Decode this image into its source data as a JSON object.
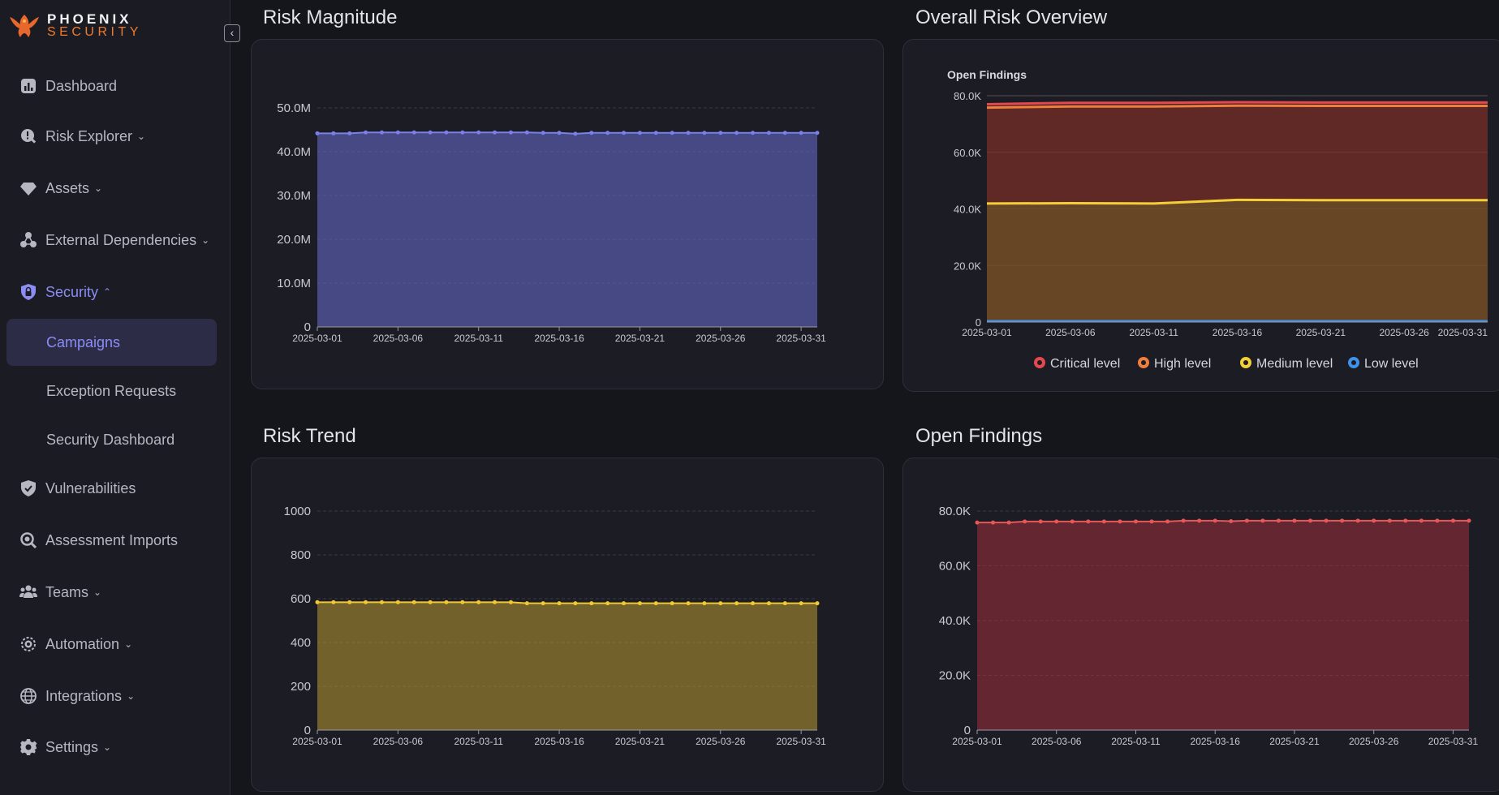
{
  "brand": {
    "line1": "PHOENIX",
    "line2": "SECURITY"
  },
  "sidebar": {
    "collapse_icon": "chevron-left-icon",
    "items": [
      {
        "label": "Dashboard",
        "icon": "chart-icon",
        "chevron": ""
      },
      {
        "label": "Risk Explorer",
        "icon": "risk-search-icon",
        "chevron": "⌄"
      },
      {
        "label": "Assets",
        "icon": "diamond-icon",
        "chevron": "⌄"
      },
      {
        "label": "External Dependencies",
        "icon": "network-icon",
        "chevron": "⌄"
      },
      {
        "label": "Security",
        "icon": "shield-lock-icon",
        "chevron": "⌃"
      },
      {
        "label": "Vulnerabilities",
        "icon": "shield-check-icon",
        "chevron": ""
      },
      {
        "label": "Assessment Imports",
        "icon": "magnifier-icon",
        "chevron": ""
      },
      {
        "label": "Teams",
        "icon": "users-icon",
        "chevron": "⌄"
      },
      {
        "label": "Automation",
        "icon": "gear-cog-icon",
        "chevron": "⌄"
      },
      {
        "label": "Integrations",
        "icon": "globe-icon",
        "chevron": "⌄"
      },
      {
        "label": "Settings",
        "icon": "gear-icon",
        "chevron": "⌄"
      }
    ],
    "security_sub": [
      {
        "label": "Campaigns",
        "selected": true
      },
      {
        "label": "Exception Requests",
        "selected": false
      },
      {
        "label": "Security Dashboard",
        "selected": false
      }
    ]
  },
  "panels": {
    "risk_magnitude": {
      "title": "Risk Magnitude"
    },
    "overall_risk": {
      "title": "Overall Risk Overview"
    },
    "risk_trend": {
      "title": "Risk Trend"
    },
    "open_findings": {
      "title": "Open Findings"
    }
  },
  "colors": {
    "magnitude": "#7b80e8",
    "trend": "#f2c832",
    "findings": "#e65757",
    "critical": "#e5484d",
    "high": "#f07e3c",
    "medium": "#f5cf38",
    "low": "#3e93e8"
  },
  "chart_data": [
    {
      "id": "risk_magnitude",
      "type": "area",
      "title": "",
      "x": [
        "2025-03-01",
        "2025-03-02",
        "2025-03-03",
        "2025-03-04",
        "2025-03-05",
        "2025-03-06",
        "2025-03-07",
        "2025-03-08",
        "2025-03-09",
        "2025-03-10",
        "2025-03-11",
        "2025-03-12",
        "2025-03-13",
        "2025-03-14",
        "2025-03-15",
        "2025-03-16",
        "2025-03-17",
        "2025-03-18",
        "2025-03-19",
        "2025-03-20",
        "2025-03-21",
        "2025-03-22",
        "2025-03-23",
        "2025-03-24",
        "2025-03-25",
        "2025-03-26",
        "2025-03-27",
        "2025-03-28",
        "2025-03-29",
        "2025-03-30",
        "2025-03-31",
        "2025-04-01"
      ],
      "x_ticks": [
        "2025-03-01",
        "2025-03-06",
        "2025-03-11",
        "2025-03-16",
        "2025-03-21",
        "2025-03-26",
        "2025-03-31"
      ],
      "values": [
        44.2,
        44.2,
        44.2,
        44.4,
        44.4,
        44.4,
        44.4,
        44.4,
        44.4,
        44.4,
        44.4,
        44.4,
        44.4,
        44.4,
        44.3,
        44.3,
        44.1,
        44.3,
        44.3,
        44.3,
        44.3,
        44.3,
        44.3,
        44.3,
        44.3,
        44.3,
        44.3,
        44.3,
        44.3,
        44.3,
        44.3,
        44.3
      ],
      "y_unit": "M",
      "ylim": [
        0,
        50
      ],
      "y_ticks": [
        "0",
        "10.0M",
        "20.0M",
        "30.0M",
        "40.0M",
        "50.0M"
      ],
      "y_tick_values": [
        0,
        10,
        20,
        30,
        40,
        50
      ],
      "grid": true
    },
    {
      "id": "overall_risk",
      "type": "area",
      "title": "Open Findings",
      "x": [
        "2025-03-01",
        "2025-03-06",
        "2025-03-11",
        "2025-03-16",
        "2025-03-21",
        "2025-03-26",
        "2025-03-31"
      ],
      "x_ticks": [
        "2025-03-01",
        "2025-03-06",
        "2025-03-11",
        "2025-03-16",
        "2025-03-21",
        "2025-03-26",
        "2025-03-31"
      ],
      "ylim": [
        0,
        80
      ],
      "y_ticks": [
        "0",
        "20.0K",
        "40.0K",
        "60.0K",
        "80.0K"
      ],
      "y_tick_values": [
        0,
        20,
        40,
        60,
        80
      ],
      "legend_position": "bottom",
      "series": [
        {
          "name": "Critical level",
          "values": [
            77.0,
            77.5,
            77.5,
            77.7,
            77.6,
            77.6,
            77.6
          ]
        },
        {
          "name": "High level",
          "values": [
            75.8,
            76.2,
            76.2,
            76.5,
            76.4,
            76.4,
            76.4
          ]
        },
        {
          "name": "Medium level",
          "values": [
            41.9,
            42.0,
            41.9,
            43.2,
            43.1,
            43.1,
            43.1
          ]
        },
        {
          "name": "Low level",
          "values": [
            0.3,
            0.3,
            0.3,
            0.3,
            0.3,
            0.3,
            0.3
          ]
        }
      ],
      "grid": true
    },
    {
      "id": "risk_trend",
      "type": "area",
      "title": "",
      "x": [
        "2025-03-01",
        "2025-03-02",
        "2025-03-03",
        "2025-03-04",
        "2025-03-05",
        "2025-03-06",
        "2025-03-07",
        "2025-03-08",
        "2025-03-09",
        "2025-03-10",
        "2025-03-11",
        "2025-03-12",
        "2025-03-13",
        "2025-03-14",
        "2025-03-15",
        "2025-03-16",
        "2025-03-17",
        "2025-03-18",
        "2025-03-19",
        "2025-03-20",
        "2025-03-21",
        "2025-03-22",
        "2025-03-23",
        "2025-03-24",
        "2025-03-25",
        "2025-03-26",
        "2025-03-27",
        "2025-03-28",
        "2025-03-29",
        "2025-03-30",
        "2025-03-31",
        "2025-04-01"
      ],
      "x_ticks": [
        "2025-03-01",
        "2025-03-06",
        "2025-03-11",
        "2025-03-16",
        "2025-03-21",
        "2025-03-26",
        "2025-03-31"
      ],
      "values": [
        584,
        584,
        584,
        584,
        584,
        584,
        584,
        584,
        584,
        584,
        584,
        584,
        584,
        579,
        579,
        579,
        579,
        579,
        579,
        579,
        579,
        579,
        579,
        579,
        579,
        579,
        579,
        579,
        579,
        579,
        579,
        579
      ],
      "ylim": [
        0,
        1000
      ],
      "y_ticks": [
        "0",
        "200",
        "400",
        "600",
        "800",
        "1000"
      ],
      "y_tick_values": [
        0,
        200,
        400,
        600,
        800,
        1000
      ],
      "grid": true
    },
    {
      "id": "open_findings",
      "type": "area",
      "title": "",
      "x": [
        "2025-03-01",
        "2025-03-02",
        "2025-03-03",
        "2025-03-04",
        "2025-03-05",
        "2025-03-06",
        "2025-03-07",
        "2025-03-08",
        "2025-03-09",
        "2025-03-10",
        "2025-03-11",
        "2025-03-12",
        "2025-03-13",
        "2025-03-14",
        "2025-03-15",
        "2025-03-16",
        "2025-03-17",
        "2025-03-18",
        "2025-03-19",
        "2025-03-20",
        "2025-03-21",
        "2025-03-22",
        "2025-03-23",
        "2025-03-24",
        "2025-03-25",
        "2025-03-26",
        "2025-03-27",
        "2025-03-28",
        "2025-03-29",
        "2025-03-30",
        "2025-03-31",
        "2025-04-01"
      ],
      "x_ticks": [
        "2025-03-01",
        "2025-03-06",
        "2025-03-11",
        "2025-03-16",
        "2025-03-21",
        "2025-03-26",
        "2025-03-31"
      ],
      "values": [
        75.8,
        75.8,
        75.8,
        76.2,
        76.2,
        76.2,
        76.2,
        76.2,
        76.2,
        76.2,
        76.2,
        76.2,
        76.2,
        76.5,
        76.5,
        76.5,
        76.3,
        76.5,
        76.5,
        76.5,
        76.5,
        76.5,
        76.5,
        76.5,
        76.5,
        76.5,
        76.5,
        76.5,
        76.5,
        76.5,
        76.5,
        76.5
      ],
      "y_unit": "K",
      "ylim": [
        0,
        80
      ],
      "y_ticks": [
        "0",
        "20.0K",
        "40.0K",
        "60.0K",
        "80.0K"
      ],
      "y_tick_values": [
        0,
        20,
        40,
        60,
        80
      ],
      "grid": true
    }
  ]
}
